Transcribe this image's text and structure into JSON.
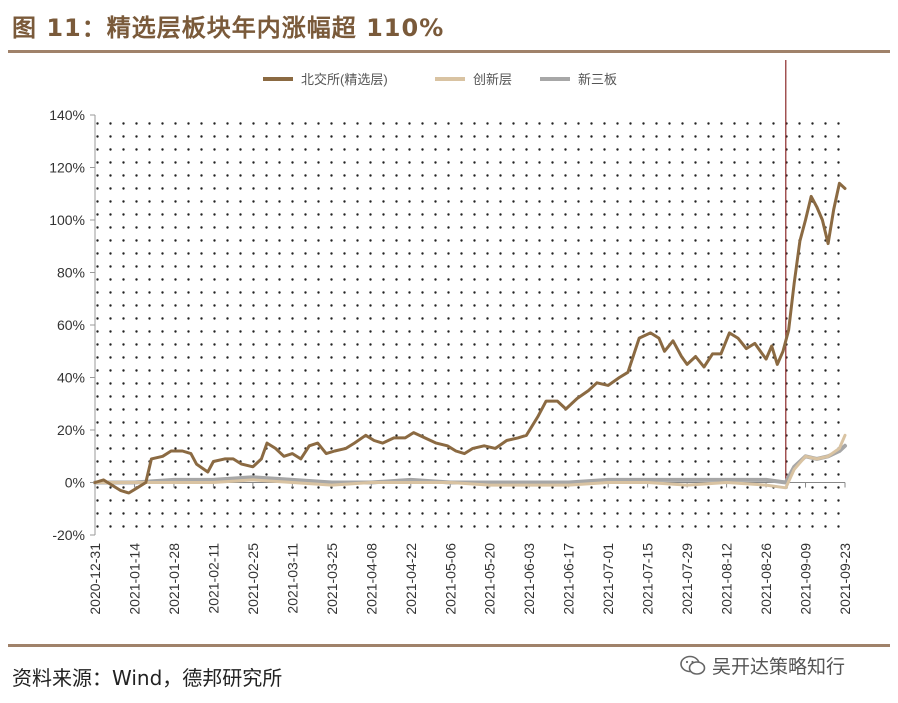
{
  "figure": {
    "title": "图 11：精选层板块年内涨幅超 110%",
    "source": "资料来源：Wind，德邦研究所",
    "watermark": "吴开达策略知行",
    "watermark_icon": "wechat-icon"
  },
  "colors": {
    "bjs": "#8b6a42",
    "cxc": "#d9c3a2",
    "xsb": "#a7a7a7",
    "vline": "#8b2a2a",
    "rule": "#a0826a"
  },
  "chart_data": {
    "type": "line",
    "title": "",
    "xlabel": "",
    "ylabel": "",
    "ylim": [
      -20,
      140
    ],
    "yticks": [
      -20,
      0,
      20,
      40,
      60,
      80,
      100,
      120,
      140
    ],
    "ytick_labels": [
      "-20%",
      "0%",
      "20%",
      "40%",
      "60%",
      "80%",
      "100%",
      "120%",
      "140%"
    ],
    "xlim": [
      "2020-12-31",
      "2021-09-23"
    ],
    "xticks": [
      "2020-12-31",
      "2021-01-14",
      "2021-01-28",
      "2021-02-11",
      "2021-02-25",
      "2021-03-11",
      "2021-03-25",
      "2021-04-08",
      "2021-04-22",
      "2021-05-06",
      "2021-05-20",
      "2021-06-03",
      "2021-06-17",
      "2021-07-01",
      "2021-07-15",
      "2021-07-29",
      "2021-08-12",
      "2021-08-26",
      "2021-09-09",
      "2021-09-23"
    ],
    "legend_position": "top",
    "background": "dotted",
    "vertical_marker": "2021-09-02",
    "series": [
      {
        "name": "北交所(精选层)",
        "color_key": "bjs",
        "points": [
          [
            "2020-12-31",
            0
          ],
          [
            "2021-01-03",
            1
          ],
          [
            "2021-01-06",
            -1
          ],
          [
            "2021-01-09",
            -3
          ],
          [
            "2021-01-12",
            -4
          ],
          [
            "2021-01-15",
            -2
          ],
          [
            "2021-01-18",
            0
          ],
          [
            "2021-01-20",
            9
          ],
          [
            "2021-01-24",
            10
          ],
          [
            "2021-01-27",
            12
          ],
          [
            "2021-01-31",
            12
          ],
          [
            "2021-02-03",
            11
          ],
          [
            "2021-02-05",
            7
          ],
          [
            "2021-02-09",
            4
          ],
          [
            "2021-02-11",
            8
          ],
          [
            "2021-02-15",
            9
          ],
          [
            "2021-02-18",
            9
          ],
          [
            "2021-02-21",
            7
          ],
          [
            "2021-02-25",
            6
          ],
          [
            "2021-02-28",
            9
          ],
          [
            "2021-03-02",
            15
          ],
          [
            "2021-03-05",
            13
          ],
          [
            "2021-03-08",
            10
          ],
          [
            "2021-03-11",
            11
          ],
          [
            "2021-03-14",
            9
          ],
          [
            "2021-03-17",
            14
          ],
          [
            "2021-03-20",
            15
          ],
          [
            "2021-03-23",
            11
          ],
          [
            "2021-03-26",
            12
          ],
          [
            "2021-03-30",
            13
          ],
          [
            "2021-04-02",
            15
          ],
          [
            "2021-04-06",
            18
          ],
          [
            "2021-04-09",
            16
          ],
          [
            "2021-04-12",
            15
          ],
          [
            "2021-04-16",
            17
          ],
          [
            "2021-04-20",
            17
          ],
          [
            "2021-04-23",
            19
          ],
          [
            "2021-04-27",
            17
          ],
          [
            "2021-05-01",
            15
          ],
          [
            "2021-05-05",
            14
          ],
          [
            "2021-05-08",
            12
          ],
          [
            "2021-05-11",
            11
          ],
          [
            "2021-05-14",
            13
          ],
          [
            "2021-05-18",
            14
          ],
          [
            "2021-05-22",
            13
          ],
          [
            "2021-05-26",
            16
          ],
          [
            "2021-05-30",
            17
          ],
          [
            "2021-06-02",
            18
          ],
          [
            "2021-06-06",
            25
          ],
          [
            "2021-06-09",
            31
          ],
          [
            "2021-06-13",
            31
          ],
          [
            "2021-06-16",
            28
          ],
          [
            "2021-06-20",
            32
          ],
          [
            "2021-06-24",
            35
          ],
          [
            "2021-06-27",
            38
          ],
          [
            "2021-07-01",
            37
          ],
          [
            "2021-07-05",
            40
          ],
          [
            "2021-07-08",
            42
          ],
          [
            "2021-07-12",
            55
          ],
          [
            "2021-07-16",
            57
          ],
          [
            "2021-07-19",
            55
          ],
          [
            "2021-07-21",
            50
          ],
          [
            "2021-07-24",
            54
          ],
          [
            "2021-07-27",
            48
          ],
          [
            "2021-07-29",
            45
          ],
          [
            "2021-08-01",
            48
          ],
          [
            "2021-08-04",
            44
          ],
          [
            "2021-08-07",
            49
          ],
          [
            "2021-08-10",
            49
          ],
          [
            "2021-08-13",
            57
          ],
          [
            "2021-08-16",
            55
          ],
          [
            "2021-08-19",
            51
          ],
          [
            "2021-08-22",
            53
          ],
          [
            "2021-08-24",
            50
          ],
          [
            "2021-08-26",
            47
          ],
          [
            "2021-08-28",
            52
          ],
          [
            "2021-08-30",
            45
          ],
          [
            "2021-09-01",
            50
          ],
          [
            "2021-09-03",
            58
          ],
          [
            "2021-09-05",
            76
          ],
          [
            "2021-09-07",
            92
          ],
          [
            "2021-09-09",
            100
          ],
          [
            "2021-09-11",
            109
          ],
          [
            "2021-09-13",
            105
          ],
          [
            "2021-09-15",
            100
          ],
          [
            "2021-09-17",
            91
          ],
          [
            "2021-09-19",
            104
          ],
          [
            "2021-09-21",
            114
          ],
          [
            "2021-09-23",
            112
          ]
        ]
      },
      {
        "name": "创新层",
        "color_key": "cxc",
        "points": [
          [
            "2020-12-31",
            0
          ],
          [
            "2021-01-14",
            0
          ],
          [
            "2021-01-28",
            0
          ],
          [
            "2021-02-11",
            0
          ],
          [
            "2021-02-25",
            1
          ],
          [
            "2021-03-11",
            0
          ],
          [
            "2021-03-25",
            -1
          ],
          [
            "2021-04-08",
            0
          ],
          [
            "2021-04-22",
            0
          ],
          [
            "2021-05-06",
            0
          ],
          [
            "2021-05-20",
            -1
          ],
          [
            "2021-06-03",
            -1
          ],
          [
            "2021-06-17",
            -1
          ],
          [
            "2021-07-01",
            0
          ],
          [
            "2021-07-15",
            0
          ],
          [
            "2021-07-29",
            -1
          ],
          [
            "2021-08-12",
            0
          ],
          [
            "2021-08-26",
            -1
          ],
          [
            "2021-09-02",
            -2
          ],
          [
            "2021-09-05",
            5
          ],
          [
            "2021-09-09",
            10
          ],
          [
            "2021-09-13",
            9
          ],
          [
            "2021-09-17",
            10
          ],
          [
            "2021-09-21",
            13
          ],
          [
            "2021-09-23",
            18
          ]
        ]
      },
      {
        "name": "新三板",
        "color_key": "xsb",
        "points": [
          [
            "2020-12-31",
            0
          ],
          [
            "2021-01-14",
            0
          ],
          [
            "2021-01-28",
            1
          ],
          [
            "2021-02-11",
            1
          ],
          [
            "2021-02-25",
            2
          ],
          [
            "2021-03-11",
            1
          ],
          [
            "2021-03-25",
            0
          ],
          [
            "2021-04-08",
            0
          ],
          [
            "2021-04-22",
            1
          ],
          [
            "2021-05-06",
            0
          ],
          [
            "2021-05-20",
            0
          ],
          [
            "2021-06-03",
            0
          ],
          [
            "2021-06-17",
            0
          ],
          [
            "2021-07-01",
            1
          ],
          [
            "2021-07-15",
            1
          ],
          [
            "2021-07-29",
            1
          ],
          [
            "2021-08-12",
            1
          ],
          [
            "2021-08-26",
            1
          ],
          [
            "2021-09-02",
            0
          ],
          [
            "2021-09-05",
            6
          ],
          [
            "2021-09-09",
            10
          ],
          [
            "2021-09-13",
            9
          ],
          [
            "2021-09-17",
            10
          ],
          [
            "2021-09-21",
            12
          ],
          [
            "2021-09-23",
            14
          ]
        ]
      }
    ]
  }
}
